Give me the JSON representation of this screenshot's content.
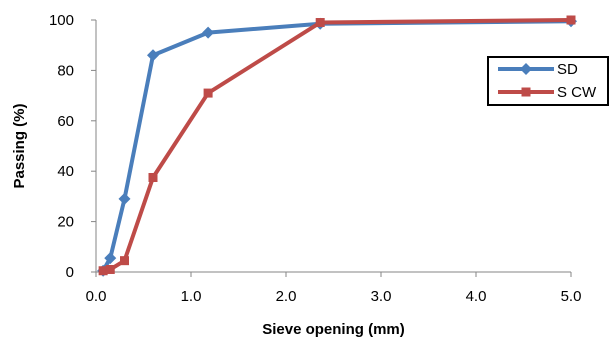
{
  "chart_data": {
    "type": "line",
    "xlabel": "Sieve opening (mm)",
    "ylabel": "Passing (%)",
    "xlim": [
      0,
      5
    ],
    "ylim": [
      0,
      100
    ],
    "xticks": [
      "0.0",
      "1.0",
      "2.0",
      "3.0",
      "4.0",
      "5.0"
    ],
    "yticks": [
      "0",
      "20",
      "40",
      "60",
      "80",
      "100"
    ],
    "grid": false,
    "legend_position": "right",
    "series": [
      {
        "name": "SD",
        "color": "#4a7ebb",
        "marker": "diamond",
        "x": [
          0.075,
          0.15,
          0.3,
          0.6,
          1.18,
          2.36,
          5.0
        ],
        "y": [
          0.5,
          5.5,
          29,
          86,
          95,
          98.5,
          99.5
        ]
      },
      {
        "name": "S CW",
        "color": "#be4b48",
        "marker": "square",
        "x": [
          0.075,
          0.15,
          0.3,
          0.6,
          1.18,
          2.36,
          5.0
        ],
        "y": [
          0.5,
          1,
          4.5,
          37.5,
          71,
          99,
          100
        ]
      }
    ]
  }
}
